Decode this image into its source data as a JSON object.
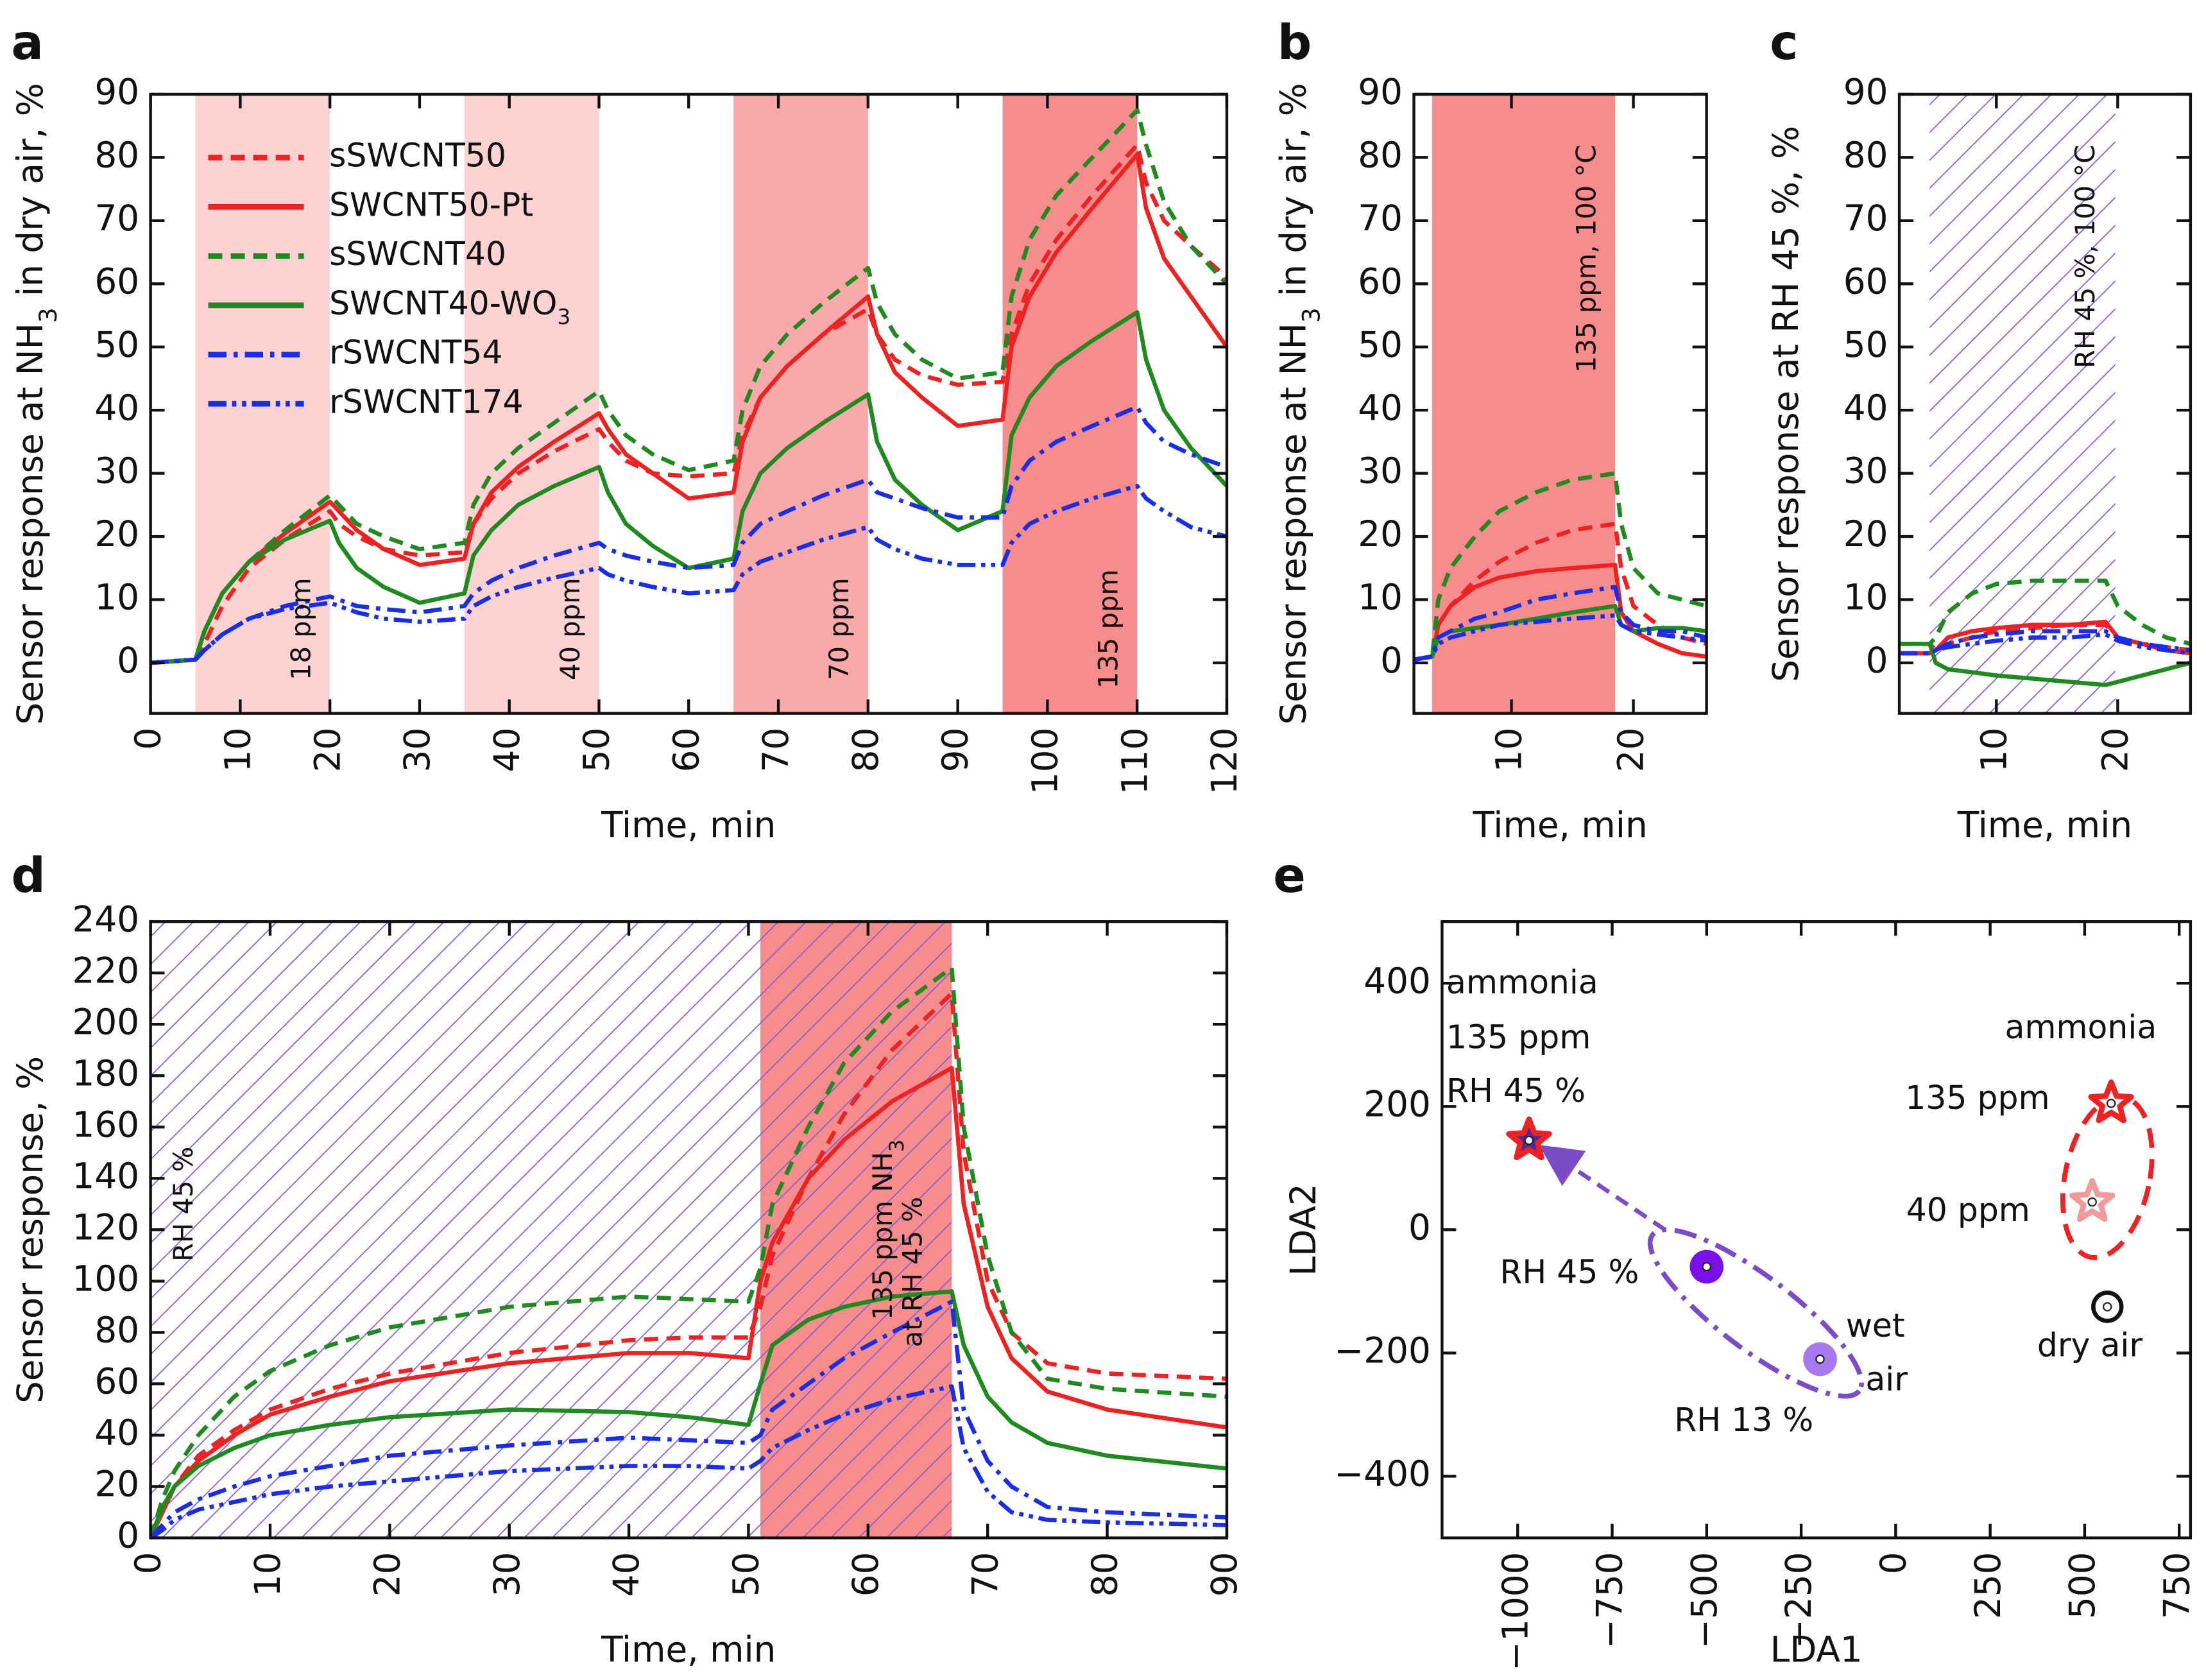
{
  "colors": {
    "red": "#ee2222",
    "green": "#1f8a1f",
    "blue": "#1a2ee8",
    "purple": "#8a5cd6",
    "shade_low": "#fcd2d2",
    "shade_mid": "#f9a9a9",
    "shade_high": "#f68c8c"
  },
  "styles": {
    "sSWCNT50": [
      "red",
      "dashed"
    ],
    "SWCNT50-Pt": [
      "red",
      "solid"
    ],
    "sSWCNT40": [
      "green",
      "dashed"
    ],
    "SWCNT40-WO3": [
      "green",
      "solid"
    ],
    "rSWCNT54": [
      "blue",
      "dashdot"
    ],
    "rSWCNT174": [
      "blue",
      "dashdotdot"
    ]
  },
  "legend": [
    {
      "text": "sSWCNT50",
      "sub": ""
    },
    {
      "text": "SWCNT50-Pt",
      "sub": ""
    },
    {
      "text": "sSWCNT40",
      "sub": ""
    },
    {
      "text": "SWCNT40-WO",
      "sub": "3"
    },
    {
      "text": "rSWCNT54",
      "sub": ""
    },
    {
      "text": "rSWCNT174",
      "sub": ""
    }
  ],
  "chart_data": [
    {
      "panel": "a",
      "type": "line",
      "xlabel": "Time, min",
      "ylabel": {
        "pre": "Sensor response at NH",
        "sub": "3",
        "post": " in dry air, %"
      },
      "xlim": [
        0,
        120
      ],
      "ylim": [
        -8,
        90
      ],
      "xticks": [
        "0",
        "10",
        "20",
        "30",
        "40",
        "50",
        "60",
        "70",
        "80",
        "90",
        "100",
        "110",
        "120"
      ],
      "yticks": [
        "0",
        "10",
        "20",
        "30",
        "40",
        "50",
        "60",
        "70",
        "80",
        "90"
      ],
      "shaded": [
        {
          "from": 5,
          "to": 20,
          "label": "18 ppm",
          "color": "shade_low"
        },
        {
          "from": 35,
          "to": 50,
          "label": "40 ppm",
          "color": "shade_low"
        },
        {
          "from": 65,
          "to": 80,
          "label": "70 ppm",
          "color": "shade_mid"
        },
        {
          "from": 95,
          "to": 110,
          "label": "135 ppm",
          "color": "shade_high"
        }
      ],
      "x": [
        0,
        5,
        6,
        8,
        11,
        15,
        20,
        21,
        23,
        26,
        30,
        35,
        36,
        38,
        41,
        45,
        50,
        51,
        53,
        56,
        60,
        65,
        66,
        68,
        71,
        75,
        80,
        81,
        83,
        86,
        90,
        95,
        96,
        98,
        101,
        105,
        110,
        111,
        113,
        116,
        120
      ],
      "series": [
        {
          "name": "sSWCNT50",
          "values": [
            0,
            0.5,
            3,
            9,
            15,
            19.5,
            24,
            22,
            20,
            18,
            17,
            17.5,
            22,
            26,
            30,
            33.5,
            37,
            35,
            32,
            30,
            29.5,
            30,
            36,
            42,
            47,
            52,
            56,
            52,
            48,
            45.5,
            44,
            44.5,
            52,
            60,
            67,
            74,
            82,
            76,
            70,
            66,
            61
          ]
        },
        {
          "name": "SWCNT50-Pt",
          "values": [
            0,
            0.5,
            5,
            11,
            16,
            20.5,
            25.5,
            24,
            21,
            18,
            15.5,
            16.5,
            22,
            27,
            31,
            35,
            39.5,
            37,
            33,
            30,
            26,
            27,
            35,
            42,
            47,
            52,
            58,
            52,
            46,
            42,
            37.5,
            38.5,
            50,
            58,
            65,
            72,
            80.5,
            72,
            64,
            58,
            50
          ]
        },
        {
          "name": "sSWCNT40",
          "values": [
            0,
            0.5,
            5,
            11,
            16,
            21,
            26.5,
            25,
            22,
            20,
            18,
            19,
            25,
            30,
            34,
            38,
            43,
            40,
            36,
            33,
            30.5,
            32,
            40,
            47,
            52,
            57,
            62.5,
            57,
            52,
            48,
            45,
            46,
            58,
            67,
            74,
            80,
            87.5,
            82,
            73,
            66,
            60
          ]
        },
        {
          "name": "SWCNT40-WO3",
          "values": [
            0,
            0.5,
            5,
            11,
            16,
            19.5,
            22.5,
            19,
            15,
            12,
            9.5,
            11,
            17,
            21,
            25,
            28,
            31,
            27,
            22,
            18.5,
            15,
            16.5,
            24,
            30,
            34,
            38,
            42.5,
            35,
            29,
            25,
            21,
            24,
            36,
            42,
            47,
            51,
            55.5,
            48,
            40,
            34,
            28
          ]
        },
        {
          "name": "rSWCNT54",
          "values": [
            0,
            0.5,
            2,
            4.5,
            7,
            9,
            10.5,
            10,
            9,
            8.5,
            8,
            9,
            11,
            13,
            15,
            17,
            19,
            18,
            17,
            16,
            15,
            15.5,
            19,
            22,
            24,
            26.5,
            29,
            27,
            26,
            24.5,
            23,
            23,
            28,
            32,
            35,
            37.5,
            40.5,
            38,
            35,
            33,
            31
          ]
        },
        {
          "name": "rSWCNT174",
          "values": [
            0,
            0.5,
            2,
            4.5,
            7,
            8.5,
            9.5,
            9,
            8,
            7,
            6.5,
            7,
            9,
            10.5,
            12,
            13.5,
            15,
            14,
            13,
            12,
            11,
            11.5,
            14,
            16,
            17.5,
            19.5,
            21.5,
            19.5,
            18,
            16.5,
            15.5,
            15.5,
            19,
            22,
            24,
            26,
            28,
            26,
            24,
            21.5,
            20
          ]
        }
      ]
    },
    {
      "panel": "b",
      "type": "line",
      "xlabel": "Time, min",
      "ylabel": {
        "pre": "Sensor response at NH",
        "sub": "3",
        "post": " in dry air, %"
      },
      "xlim": [
        2,
        26
      ],
      "ylim": [
        -8,
        90
      ],
      "xticks": [
        "10",
        "20"
      ],
      "yticks": [
        "0",
        "10",
        "20",
        "30",
        "40",
        "50",
        "60",
        "70",
        "80",
        "90"
      ],
      "shaded": [
        {
          "from": 3.5,
          "to": 18.5,
          "label": "135 ppm, 100 °C",
          "color": "shade_high"
        }
      ],
      "x": [
        2,
        3.5,
        4,
        5,
        7,
        9,
        12,
        15,
        18.5,
        19,
        20,
        22,
        24,
        26
      ],
      "series": [
        {
          "name": "sSWCNT50",
          "values": [
            0.5,
            1,
            6,
            9,
            13,
            16,
            19,
            21,
            22,
            15,
            9,
            6,
            4,
            3
          ]
        },
        {
          "name": "SWCNT50-Pt",
          "values": [
            0.5,
            1,
            6,
            9,
            12,
            13.5,
            14.5,
            15,
            15.5,
            8,
            5,
            3,
            1.5,
            1
          ]
        },
        {
          "name": "sSWCNT40",
          "values": [
            0.5,
            1,
            10,
            15,
            20,
            24,
            27,
            29,
            30,
            22,
            15,
            11,
            10,
            9
          ]
        },
        {
          "name": "SWCNT40-WO3",
          "values": [
            0.5,
            1,
            4,
            5,
            5.5,
            6,
            7,
            8,
            9,
            6,
            5,
            5.5,
            5.5,
            5
          ]
        },
        {
          "name": "rSWCNT54",
          "values": [
            0.5,
            1,
            4,
            5,
            7,
            8,
            10,
            11,
            12,
            8,
            6,
            5,
            5,
            4
          ]
        },
        {
          "name": "rSWCNT174",
          "values": [
            0.5,
            1,
            3,
            4,
            5,
            6,
            6.5,
            7,
            7.5,
            6,
            5,
            4.5,
            4,
            3.5
          ]
        }
      ]
    },
    {
      "panel": "c",
      "type": "line",
      "xlabel": "Time, min",
      "ylabel": {
        "pre": "Sensor response at RH 45 %, %",
        "sub": "",
        "post": ""
      },
      "xlim": [
        2,
        26
      ],
      "ylim": [
        -8,
        90
      ],
      "xticks": [
        "10",
        "20"
      ],
      "yticks": [
        "0",
        "10",
        "20",
        "30",
        "40",
        "50",
        "60",
        "70",
        "80",
        "90"
      ],
      "hatched": [
        {
          "from": 4.5,
          "to": 19.8,
          "label": "RH 45 %, 100 °C"
        }
      ],
      "x": [
        2,
        4.5,
        5,
        6,
        8,
        10,
        13,
        16,
        19,
        20,
        22,
        24,
        26
      ],
      "series": [
        {
          "name": "sSWCNT50",
          "values": [
            3,
            3,
            2,
            3,
            4,
            5,
            5.5,
            6,
            6,
            4,
            3,
            2.5,
            2
          ]
        },
        {
          "name": "SWCNT50-Pt",
          "values": [
            1.5,
            1.5,
            2,
            4,
            5,
            5.5,
            6,
            6,
            6.5,
            4,
            3,
            2,
            1.5
          ]
        },
        {
          "name": "sSWCNT40",
          "values": [
            3,
            3,
            4,
            8,
            11,
            12.5,
            13,
            13,
            13,
            9,
            6,
            4,
            3
          ]
        },
        {
          "name": "SWCNT40-WO3",
          "values": [
            3,
            3,
            0,
            -1,
            -1.5,
            -2,
            -2.5,
            -3,
            -3.5,
            -3,
            -2,
            -1,
            0
          ]
        },
        {
          "name": "rSWCNT54",
          "values": [
            1.5,
            1.5,
            2,
            3,
            4,
            4.5,
            5,
            5,
            5,
            4,
            3,
            2.5,
            2
          ]
        },
        {
          "name": "rSWCNT174",
          "values": [
            1.5,
            1.5,
            2,
            2.5,
            3,
            3.5,
            4,
            4,
            4.5,
            3.5,
            2.5,
            2,
            1.5
          ]
        }
      ]
    },
    {
      "panel": "d",
      "type": "line",
      "xlabel": "Time, min",
      "ylabel": {
        "pre": "Sensor response, %",
        "sub": "",
        "post": ""
      },
      "xlim": [
        0,
        90
      ],
      "ylim": [
        0,
        240
      ],
      "xticks": [
        "0",
        "10",
        "20",
        "30",
        "40",
        "50",
        "60",
        "70",
        "80",
        "90"
      ],
      "yticks": [
        "0",
        "20",
        "40",
        "60",
        "80",
        "100",
        "120",
        "140",
        "160",
        "180",
        "200",
        "220",
        "240"
      ],
      "hatched": [
        {
          "from": 0,
          "to": 67,
          "label": "RH 45 %"
        }
      ],
      "shaded": [
        {
          "from": 51,
          "to": 67,
          "label": {
            "l1pre": "135 ppm NH",
            "l1sub": "3",
            "l2": "at RH 45 %"
          },
          "color": "shade_high"
        }
      ],
      "x": [
        0,
        1,
        2,
        4,
        7,
        10,
        15,
        20,
        30,
        40,
        45,
        50,
        51,
        52,
        55,
        58,
        62,
        67,
        68,
        70,
        72,
        75,
        80,
        90
      ],
      "series": [
        {
          "name": "sSWCNT50",
          "values": [
            0,
            10,
            20,
            32,
            42,
            50,
            58,
            64,
            72,
            77,
            78,
            78,
            90,
            110,
            140,
            165,
            190,
            212,
            150,
            100,
            80,
            68,
            64,
            62
          ]
        },
        {
          "name": "SWCNT50-Pt",
          "values": [
            0,
            10,
            20,
            30,
            40,
            48,
            55,
            61,
            68,
            72,
            72,
            70,
            100,
            115,
            140,
            155,
            170,
            183,
            130,
            90,
            70,
            57,
            50,
            43
          ]
        },
        {
          "name": "sSWCNT40",
          "values": [
            0,
            15,
            26,
            40,
            55,
            65,
            75,
            82,
            90,
            94,
            93,
            92,
            105,
            130,
            160,
            185,
            205,
            222,
            160,
            110,
            80,
            62,
            58,
            55
          ]
        },
        {
          "name": "SWCNT40-WO3",
          "values": [
            0,
            12,
            20,
            28,
            35,
            40,
            44,
            47,
            50,
            49,
            47,
            44,
            60,
            75,
            85,
            90,
            94,
            96,
            75,
            55,
            45,
            37,
            32,
            27
          ]
        },
        {
          "name": "rSWCNT54",
          "values": [
            0,
            5,
            10,
            15,
            20,
            24,
            28,
            32,
            36,
            39,
            38,
            37,
            40,
            50,
            60,
            70,
            80,
            92,
            50,
            30,
            20,
            12,
            10,
            8
          ]
        },
        {
          "name": "rSWCNT174",
          "values": [
            0,
            3,
            7,
            11,
            14,
            17,
            20,
            22,
            26,
            28,
            28,
            27,
            30,
            35,
            42,
            48,
            54,
            59,
            35,
            18,
            10,
            7,
            6,
            5
          ]
        }
      ]
    },
    {
      "panel": "e",
      "type": "scatter",
      "xlabel": "LDA1",
      "ylabel": "LDA2",
      "xlim": [
        -1200,
        780
      ],
      "ylim": [
        -500,
        500
      ],
      "xticks": [
        "−1000",
        "−750",
        "−500",
        "−250",
        "0",
        "250",
        "500",
        "750"
      ],
      "yticks": [
        "−400",
        "−200",
        "0",
        "200",
        "400"
      ],
      "points": [
        {
          "label": "ammonia 135 ppm RH 45 %",
          "x": -970,
          "y": 145,
          "marker": "star",
          "color": "#ee2222"
        },
        {
          "label": "ammonia 135 ppm",
          "x": 570,
          "y": 205,
          "marker": "star",
          "color": "#ee2222"
        },
        {
          "label": "ammonia 40 ppm",
          "x": 520,
          "y": 45,
          "marker": "star",
          "color": "#f29a9a"
        },
        {
          "label": "dry air",
          "x": 560,
          "y": -125,
          "marker": "open-circle",
          "color": "#111111"
        },
        {
          "label": "RH 45 %",
          "x": -500,
          "y": -60,
          "marker": "circle",
          "color": "#7a10e8"
        },
        {
          "label": "RH 13 %",
          "x": -200,
          "y": -210,
          "marker": "circle",
          "color": "#a878f0"
        }
      ],
      "annotations": [
        "ammonia",
        "135 ppm",
        "RH 45 %",
        "ammonia",
        "135 ppm",
        "40 ppm",
        "RH 45 %",
        "wet",
        "air",
        "RH 13 %",
        "dry air"
      ]
    }
  ]
}
